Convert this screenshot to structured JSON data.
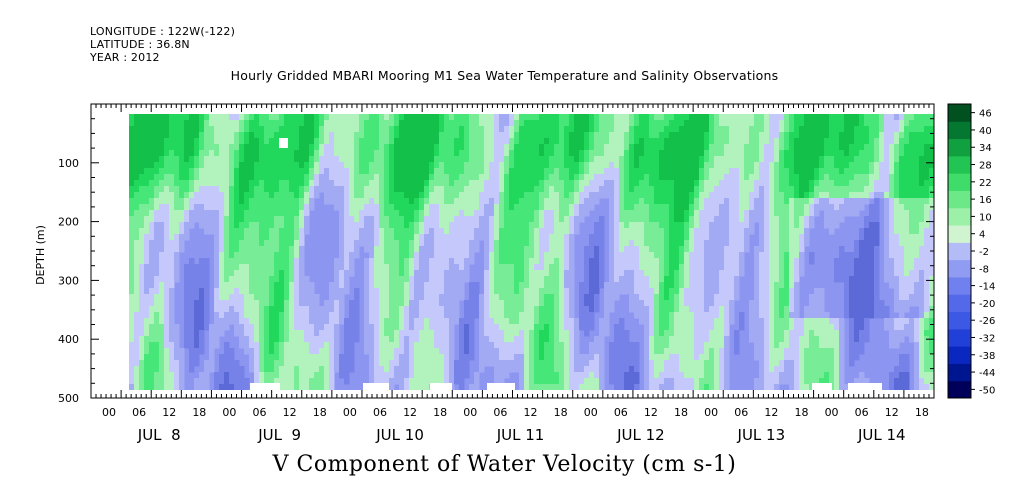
{
  "meta": {
    "longitude": "LONGITUDE : 122W(-122)",
    "latitude": "LATITUDE : 36.8N",
    "year": "YEAR : 2012"
  },
  "chart_data": {
    "type": "heatmap",
    "title": "Hourly Gridded MBARI Mooring M1 Sea Water Temperature and Salinity Observations",
    "xlabel": "V Component of Water Velocity (cm s-1)",
    "ylabel": "DEPTH (m)",
    "ylim": [
      500,
      0
    ],
    "y_ticks": [
      100,
      200,
      300,
      400,
      500
    ],
    "y_tick_labels": [
      "100",
      "200",
      "300",
      "400",
      "500"
    ],
    "x_hour_labels": [
      "00",
      "06",
      "12",
      "18",
      "00",
      "06",
      "12",
      "18",
      "00",
      "06",
      "12",
      "18",
      "00",
      "06",
      "12",
      "18",
      "00",
      "06",
      "12",
      "18",
      "00",
      "06",
      "12",
      "18",
      "00",
      "06",
      "12",
      "18"
    ],
    "x_day_labels": [
      "JUL  8",
      "JUL  9",
      "JUL 10",
      "JUL 11",
      "JUL 12",
      "JUL 13",
      "JUL 14"
    ],
    "colorbar": {
      "levels": [
        -50,
        -44,
        -38,
        -32,
        -26,
        -20,
        -14,
        -8,
        -2,
        4,
        10,
        16,
        22,
        28,
        34,
        40,
        46
      ],
      "labels": [
        "46",
        "40",
        "34",
        "28",
        "22",
        "16",
        "10",
        "4",
        "-2",
        "-8",
        "-14",
        "-20",
        "-26",
        "-32",
        "-38",
        "-44",
        "-50"
      ],
      "low_color": "#000a64",
      "mid_color": "#c8c8ff",
      "high_color": "#005020"
    },
    "dominant_colors": {
      "negative": "#8c96f0",
      "positive": "#46e678"
    },
    "notes": "Field is alternating bands of weak positive (green, roughly 4 to 16) and weak negative (blue/lavender, roughly -2 to -14) velocity; upper 150 m mostly positive, lower layers mostly negative."
  }
}
